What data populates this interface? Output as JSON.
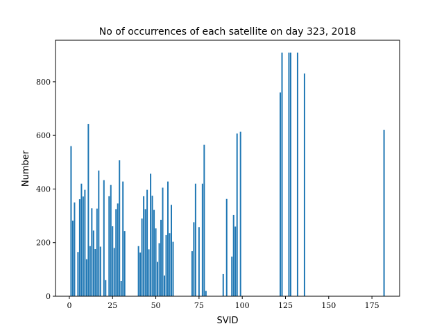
{
  "chart_data": {
    "type": "bar",
    "title": "No of occurrences of each satellite on day 323, 2018",
    "xlabel": "SVID",
    "ylabel": "Number",
    "xlim": [
      -8,
      191
    ],
    "ylim": [
      0,
      955
    ],
    "xticks": [
      0,
      25,
      50,
      75,
      100,
      125,
      150,
      175
    ],
    "yticks": [
      0,
      200,
      400,
      600,
      800
    ],
    "bar_width": 0.8,
    "bar_color": "#1f77b4",
    "grid": false,
    "x": [
      1,
      2,
      3,
      5,
      6,
      7,
      8,
      9,
      10,
      11,
      12,
      13,
      14,
      15,
      16,
      17,
      18,
      20,
      21,
      23,
      24,
      25,
      26,
      27,
      28,
      29,
      30,
      31,
      32,
      40,
      41,
      42,
      43,
      44,
      45,
      46,
      47,
      48,
      49,
      50,
      51,
      52,
      53,
      54,
      55,
      56,
      57,
      58,
      59,
      60,
      71,
      72,
      73,
      75,
      77,
      78,
      79,
      89,
      91,
      94,
      95,
      96,
      97,
      99,
      122,
      123,
      127,
      128,
      132,
      136,
      182
    ],
    "values": [
      560,
      282,
      350,
      165,
      362,
      420,
      372,
      397,
      138,
      642,
      187,
      328,
      245,
      176,
      327,
      469,
      185,
      433,
      60,
      373,
      415,
      261,
      180,
      325,
      346,
      507,
      57,
      428,
      243,
      187,
      163,
      290,
      373,
      325,
      397,
      175,
      457,
      375,
      322,
      253,
      128,
      198,
      285,
      405,
      77,
      228,
      428,
      235,
      341,
      203,
      168,
      276,
      420,
      258,
      420,
      565,
      20,
      83,
      363,
      148,
      303,
      260,
      607,
      614,
      760,
      909,
      909,
      909,
      909,
      831,
      621
    ]
  }
}
